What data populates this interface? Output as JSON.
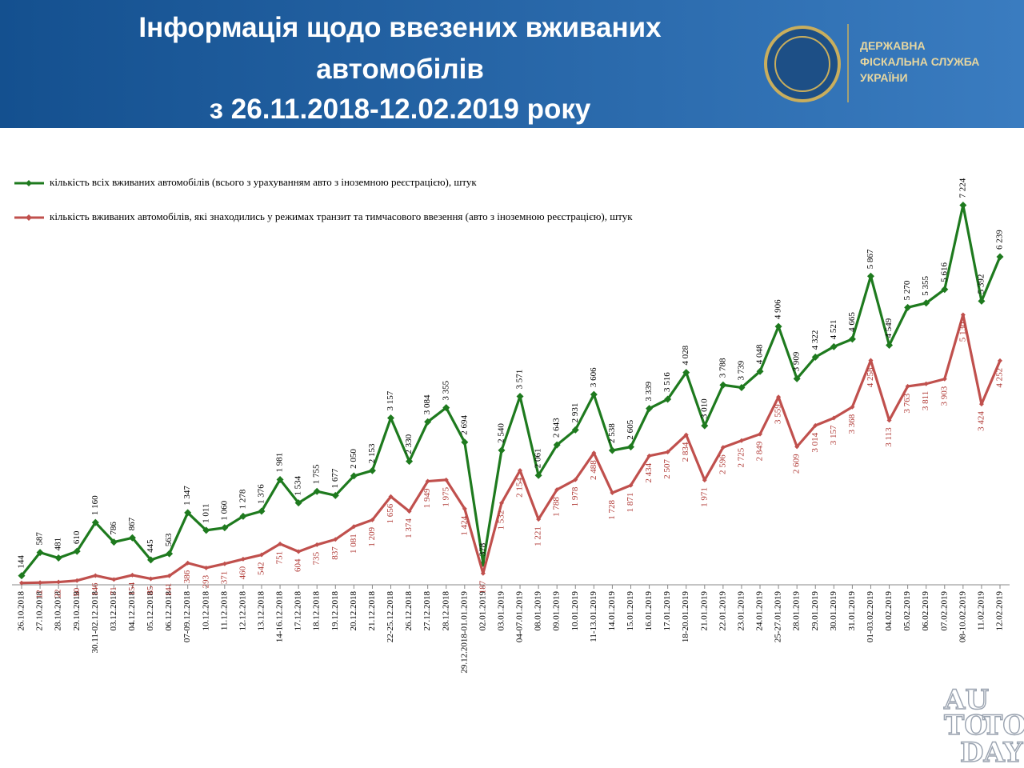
{
  "header": {
    "title_lines": [
      "Інформація щодо ввезених вживаних",
      "автомобілів",
      "з 26.11.2018-12.02.2019 року"
    ],
    "org_lines": [
      "ДЕРЖАВНА",
      "ФІСКАЛЬНА СЛУЖБА",
      "УКРАЇНИ"
    ]
  },
  "watermark": {
    "lines": [
      "AU",
      "TO",
      "TO",
      "DAY"
    ]
  },
  "chart_data": {
    "type": "line",
    "categories": [
      "26.10.2018",
      "27.10.2018",
      "28.10.2018",
      "29.10.2018",
      "30.11-02.12.2018",
      "03.12.2018",
      "04.12.2018",
      "05.12.2018",
      "06.12.2018",
      "07-09.12.2018",
      "10.12.2018",
      "11.12.2018",
      "12.12.2018",
      "13.12.2018",
      "14-16.12.2018",
      "17.12.2018",
      "18.12.2018",
      "19.12.2018",
      "20.12.2018",
      "21.12.2018",
      "22-25.12.2018",
      "26.12.2018",
      "27.12.2018",
      "28.12.2018",
      "29.12.2018-01.01.2019",
      "02.01.2019",
      "03.01.2019",
      "04-07.01.2019",
      "08.01.2019",
      "09.01.2019",
      "10.01.2019",
      "11-13.01.2019",
      "14.01.2019",
      "15.01.2019",
      "16.01.2019",
      "17.01.2019",
      "18-20.01.2019",
      "21.01.2019",
      "22.01.2019",
      "23.01.2019",
      "24.01.2019",
      "25-27.01.2019",
      "28.01.2019",
      "29.01.2019",
      "30.01.2019",
      "31.01.2019",
      "01-03.02.2019",
      "04.02.2019",
      "05.02.2019",
      "06.02.2019",
      "07.02.2019",
      "08-10.02.2019",
      "11.02.2019",
      "12.02.2019"
    ],
    "series": [
      {
        "name": "кількість всіх вживаних автомобілів (всього з урахуванням авто з іноземною реєстрацією), штук",
        "color": "#1e7a1e",
        "values": [
          144,
          587,
          481,
          610,
          1160,
          786,
          867,
          445,
          563,
          1347,
          1011,
          1060,
          1278,
          1376,
          1981,
          1534,
          1755,
          1677,
          2050,
          2153,
          3157,
          2330,
          3084,
          3355,
          2694,
          378,
          2540,
          3571,
          2061,
          2643,
          2931,
          3606,
          2538,
          2605,
          3339,
          3516,
          4028,
          3010,
          3788,
          3739,
          4048,
          4906,
          3909,
          4322,
          4521,
          4665,
          5867,
          4549,
          5270,
          5355,
          5616,
          7224,
          5392,
          6239
        ],
        "value_labels": [
          "144",
          "587",
          "481",
          "610",
          "1 160",
          "786",
          "867",
          "445",
          "563",
          "1 347",
          "1 011",
          "1 060",
          "1 278",
          "1 376",
          "1 981",
          "1 534",
          "1 755",
          "1 677",
          "2 050",
          "2 153",
          "3 157",
          "2 330",
          "3 084",
          "3 355",
          "2 694",
          "378",
          "2 540",
          "3 571",
          "2 061",
          "2 643",
          "2 931",
          "3 606",
          "2 538",
          "2 605",
          "3 339",
          "3 516",
          "4 028",
          "3 010",
          "3 788",
          "3 739",
          "4 048",
          "4 906",
          "3 909",
          "4 322",
          "4 521",
          "4 665",
          "5 867",
          "4 549",
          "5 270",
          "5 355",
          "5 616",
          "7 224",
          "5 392",
          "6 239"
        ]
      },
      {
        "name": "кількість вживаних автомобілів, які знаходились у режимах транзит та тимчасового ввезення (авто з іноземною реєстрацією), штук",
        "color": "#c0504d",
        "values": [
          5,
          12,
          22,
          50,
          146,
          71,
          154,
          85,
          141,
          386,
          293,
          371,
          460,
          542,
          751,
          604,
          735,
          837,
          1081,
          1209,
          1656,
          1374,
          1949,
          1975,
          1424,
          187,
          1532,
          2154,
          1221,
          1788,
          1978,
          2488,
          1728,
          1871,
          2434,
          2507,
          2834,
          1971,
          2596,
          2725,
          2849,
          3559,
          2609,
          3014,
          3157,
          3368,
          4258,
          3113,
          3763,
          3811,
          3903,
          5130,
          3424,
          4252
        ],
        "value_labels": [
          null,
          "12",
          "22",
          "50",
          "146",
          "71",
          "154",
          "85",
          "141",
          "386",
          "293",
          "371",
          "460",
          "542",
          "751",
          "604",
          "735",
          "837",
          "1 081",
          "1 209",
          "1 656",
          "1 374",
          "1 949",
          "1 975",
          "1 424",
          "187",
          "1 532",
          "2 154",
          "1 221",
          "1 788",
          "1 978",
          "2 488",
          "1 728",
          "1 871",
          "2 434",
          "2 507",
          "2 834",
          "1 971",
          "2 596",
          "2 725",
          "2 849",
          "3 559",
          "2 609",
          "3 014",
          "3 157",
          "3 368",
          "4 258",
          "3 113",
          "3 763",
          "3 811",
          "3 903",
          "5 130",
          "3 424",
          "4 252"
        ]
      }
    ],
    "ylim": [
      0,
      7500
    ],
    "grid": false
  }
}
